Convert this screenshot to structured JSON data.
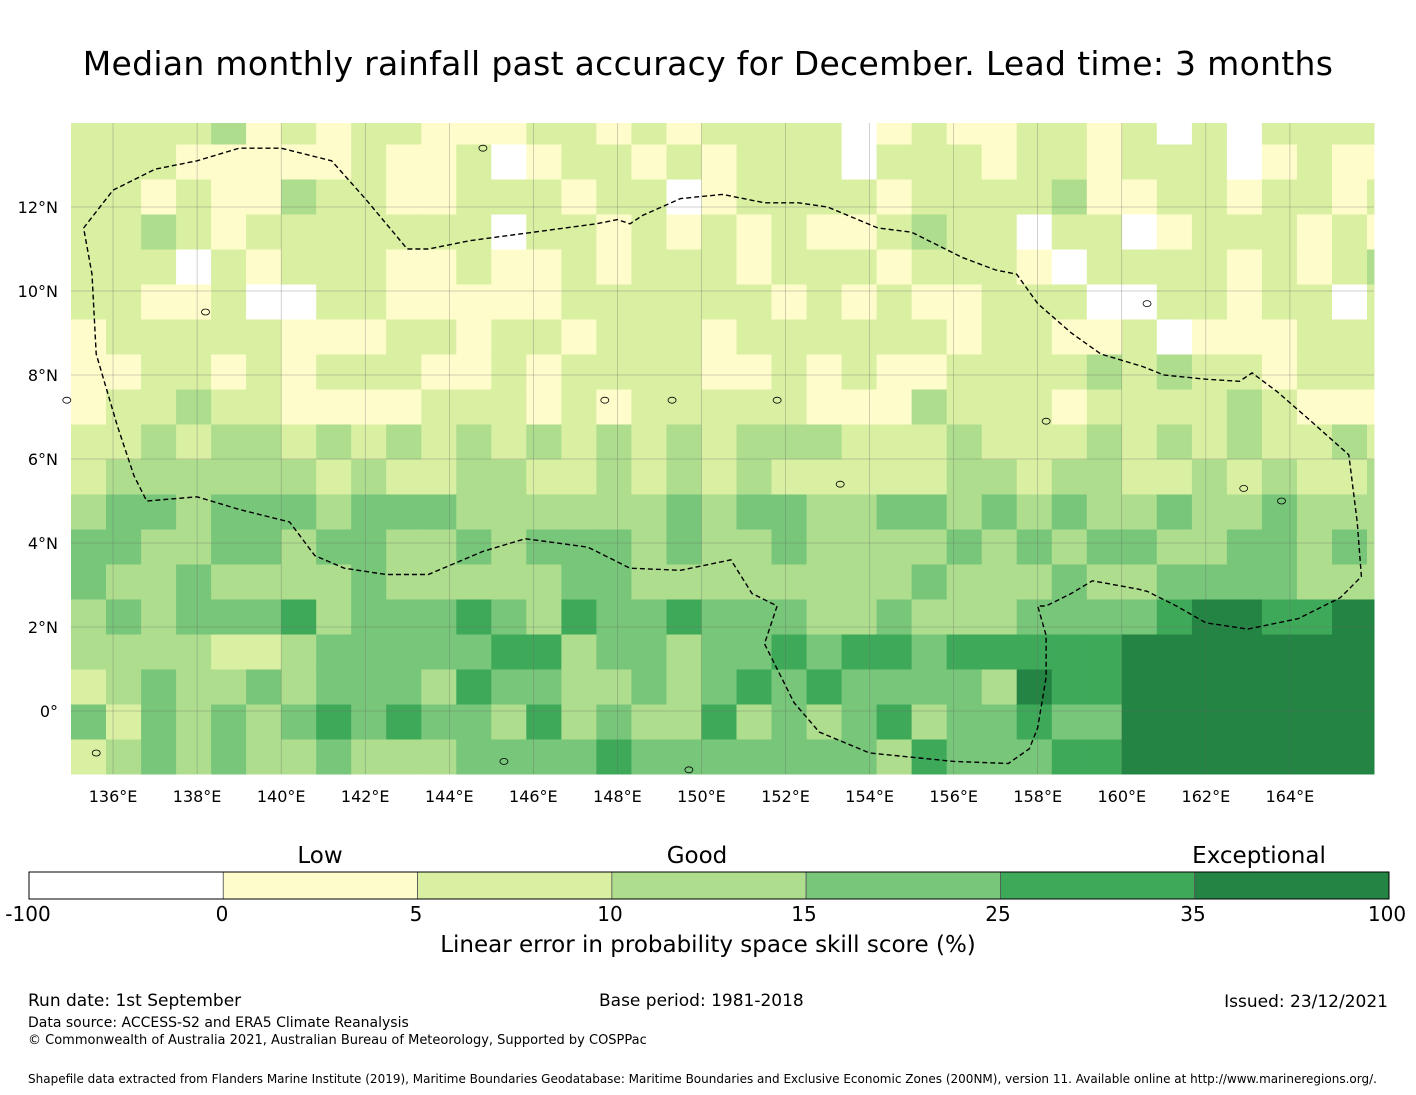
{
  "title": "Median monthly rainfall past accuracy for December. Lead time: 3 months",
  "map": {
    "lon_range": [
      135,
      166
    ],
    "lat_range": [
      -1.5,
      14
    ],
    "lon_labels": [
      "136°E",
      "138°E",
      "140°E",
      "142°E",
      "144°E",
      "146°E",
      "148°E",
      "150°E",
      "152°E",
      "154°E",
      "156°E",
      "158°E",
      "160°E",
      "162°E",
      "164°E"
    ],
    "lat_labels": [
      "12°N",
      "10°N",
      "8°N",
      "6°N",
      "4°N",
      "2°N",
      "0°"
    ],
    "lon_ticks": [
      136,
      138,
      140,
      142,
      144,
      146,
      148,
      150,
      152,
      154,
      156,
      158,
      160,
      162,
      164
    ],
    "lat_ticks": [
      12,
      10,
      8,
      6,
      4,
      2,
      0
    ],
    "eez_boundary": [
      [
        135.3,
        11.5
      ],
      [
        136,
        12.4
      ],
      [
        137,
        12.9
      ],
      [
        138,
        13.1
      ],
      [
        139,
        13.4
      ],
      [
        140,
        13.4
      ],
      [
        141.2,
        13.1
      ],
      [
        142,
        12.2
      ],
      [
        143,
        11.0
      ],
      [
        143.5,
        11.0
      ],
      [
        144.5,
        11.2
      ],
      [
        146,
        11.4
      ],
      [
        147.5,
        11.6
      ],
      [
        148,
        11.7
      ],
      [
        148.3,
        11.6
      ],
      [
        148.6,
        11.8
      ],
      [
        149.5,
        12.2
      ],
      [
        150.5,
        12.3
      ],
      [
        151.5,
        12.1
      ],
      [
        152.3,
        12.1
      ],
      [
        153,
        12.0
      ],
      [
        154.2,
        11.5
      ],
      [
        155,
        11.4
      ],
      [
        156.2,
        10.8
      ],
      [
        157,
        10.5
      ],
      [
        157.5,
        10.4
      ],
      [
        158,
        9.7
      ],
      [
        158.8,
        9.0
      ],
      [
        159.5,
        8.5
      ],
      [
        160.5,
        8.2
      ],
      [
        161,
        8.0
      ],
      [
        162,
        7.9
      ],
      [
        162.8,
        7.85
      ],
      [
        163.1,
        8.05
      ],
      [
        163.7,
        7.6
      ],
      [
        164.5,
        6.9
      ],
      [
        165.4,
        6.1
      ],
      [
        165.6,
        4.5
      ],
      [
        165.7,
        3.2
      ],
      [
        165.2,
        2.7
      ],
      [
        164.2,
        2.2
      ],
      [
        163,
        1.95
      ],
      [
        162,
        2.1
      ],
      [
        161.3,
        2.5
      ],
      [
        160.6,
        2.85
      ],
      [
        160.4,
        2.9
      ],
      [
        159.3,
        3.1
      ],
      [
        158.8,
        2.8
      ],
      [
        158.2,
        2.5
      ],
      [
        158,
        2.5
      ],
      [
        158.2,
        1.8
      ],
      [
        158.2,
        0.8
      ],
      [
        158,
        -0.4
      ],
      [
        157.8,
        -0.9
      ],
      [
        157.3,
        -1.25
      ],
      [
        156,
        -1.2
      ],
      [
        154,
        -1.0
      ],
      [
        152.8,
        -0.5
      ],
      [
        152.2,
        0.2
      ],
      [
        151.5,
        1.6
      ],
      [
        151.8,
        2.5
      ],
      [
        151.2,
        2.8
      ],
      [
        150.7,
        3.6
      ],
      [
        149.5,
        3.35
      ],
      [
        148.3,
        3.4
      ],
      [
        147.3,
        3.9
      ],
      [
        146.2,
        4.05
      ],
      [
        145.8,
        4.1
      ],
      [
        144.8,
        3.8
      ],
      [
        143.5,
        3.25
      ],
      [
        142.5,
        3.25
      ],
      [
        141.5,
        3.4
      ],
      [
        140.8,
        3.7
      ],
      [
        140.2,
        4.5
      ],
      [
        139,
        4.8
      ],
      [
        138,
        5.1
      ],
      [
        136.8,
        5.0
      ],
      [
        136.5,
        5.6
      ],
      [
        136.1,
        6.8
      ],
      [
        135.6,
        8.5
      ],
      [
        135.5,
        10.4
      ],
      [
        135.3,
        11.5
      ]
    ],
    "color_scale": [
      "#ffffff",
      "#fffccc",
      "#d9efa2",
      "#aedd8e",
      "#78c679",
      "#3fa95a",
      "#238443"
    ]
  },
  "colorbar": {
    "categories": [
      "Low",
      "Good",
      "Exceptional"
    ],
    "ticks": [
      "-100",
      "0",
      "5",
      "10",
      "15",
      "25",
      "35",
      "100"
    ],
    "colors": [
      "#ffffff",
      "#fffccc",
      "#d9efa2",
      "#aedd8e",
      "#78c679",
      "#3fa95a",
      "#238443"
    ],
    "label": "Linear error in probability space skill score (%)"
  },
  "footer": {
    "run_date": "Run date: 1st September",
    "base_period": "Base period: 1981-2018",
    "issued": "Issued: 23/12/2021",
    "data_source": "Data source: ACCESS-S2 and ERA5 Climate Reanalysis",
    "copyright": "© Commonwealth of Australia 2021, Australian Bureau of Meteorology, Supported by COSPPac",
    "shapefile": "Shapefile data extracted from Flanders Marine Institute (2019), Maritime Boundaries Geodatabase: Maritime Boundaries and Exclusive Economic Zones (200NM), version 11. Available online at http://www.marineregions.org/."
  }
}
